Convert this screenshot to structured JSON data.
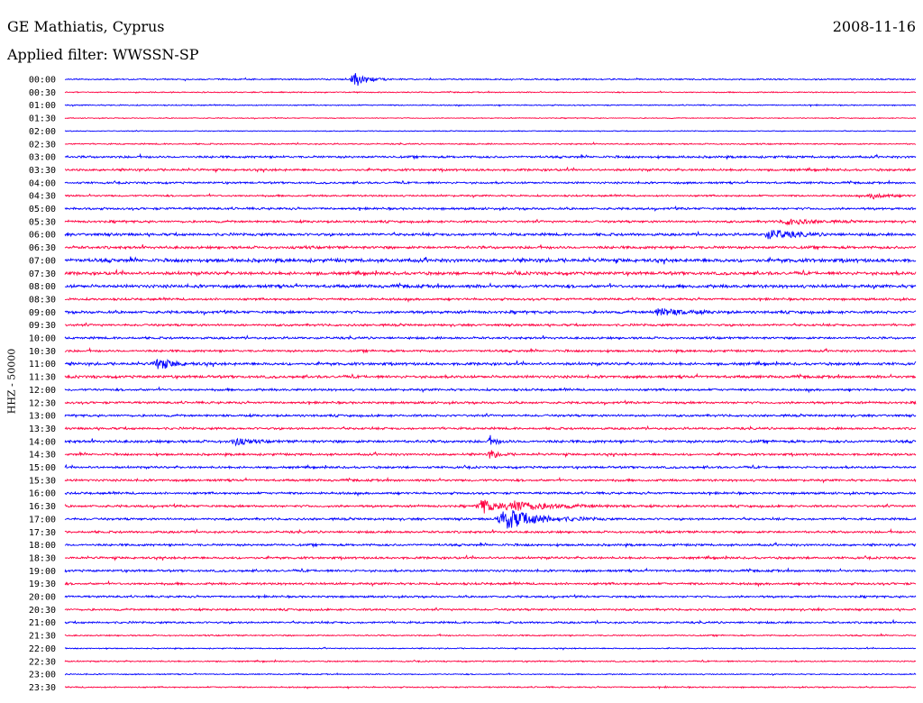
{
  "header": {
    "station": "GE Mathiatis, Cyprus",
    "date": "2008-11-16",
    "filter": "Applied filter: WWSSN-SP"
  },
  "colors": {
    "odd_trace": "#0000ff",
    "even_trace": "#ff0040",
    "text": "#000000"
  },
  "chart_data": {
    "type": "helicorder",
    "title": "GE Mathiatis, Cyprus",
    "subtitle": "Applied filter: WWSSN-SP",
    "date": "2008-11-16",
    "ylabel": "HHZ - 50000",
    "grid": false,
    "row_labels": [
      "00:00",
      "00:30",
      "01:00",
      "01:30",
      "02:00",
      "02:30",
      "03:00",
      "03:30",
      "04:00",
      "04:30",
      "05:00",
      "05:30",
      "06:00",
      "06:30",
      "07:00",
      "07:30",
      "08:00",
      "08:30",
      "09:00",
      "09:30",
      "10:00",
      "10:30",
      "11:00",
      "11:30",
      "12:00",
      "12:30",
      "13:00",
      "13:30",
      "14:00",
      "14:30",
      "15:00",
      "15:30",
      "16:00",
      "16:30",
      "17:00",
      "17:30",
      "18:00",
      "18:30",
      "19:00",
      "19:30",
      "20:00",
      "20:30",
      "21:00",
      "21:30",
      "22:00",
      "22:30",
      "23:00",
      "23:30"
    ],
    "row_noise_levels": [
      0.6,
      0.5,
      0.5,
      0.4,
      0.4,
      0.6,
      1.0,
      1.0,
      0.9,
      0.8,
      1.0,
      1.0,
      1.2,
      1.2,
      1.6,
      1.4,
      1.4,
      1.0,
      1.2,
      1.0,
      1.0,
      1.0,
      1.2,
      1.2,
      1.0,
      1.0,
      1.0,
      1.0,
      1.2,
      1.0,
      1.0,
      1.0,
      1.0,
      1.0,
      1.0,
      1.0,
      1.0,
      1.0,
      1.0,
      1.0,
      0.9,
      0.9,
      0.9,
      0.6,
      0.5,
      0.6,
      0.5,
      0.6
    ],
    "events": [
      {
        "row": 0,
        "x": 0.34,
        "amp": 9,
        "width": 0.015
      },
      {
        "row": 9,
        "x": 0.95,
        "amp": 3,
        "width": 0.02
      },
      {
        "row": 11,
        "x": 0.85,
        "amp": 3,
        "width": 0.03
      },
      {
        "row": 12,
        "x": 0.83,
        "amp": 5,
        "width": 0.03
      },
      {
        "row": 18,
        "x": 0.7,
        "amp": 4,
        "width": 0.03
      },
      {
        "row": 22,
        "x": 0.11,
        "amp": 6,
        "width": 0.02
      },
      {
        "row": 28,
        "x": 0.2,
        "amp": 4,
        "width": 0.015
      },
      {
        "row": 28,
        "x": 0.5,
        "amp": 4,
        "width": 0.01
      },
      {
        "row": 29,
        "x": 0.5,
        "amp": 5,
        "width": 0.01
      },
      {
        "row": 33,
        "x": 0.49,
        "amp": 8,
        "width": 0.02
      },
      {
        "row": 33,
        "x": 0.53,
        "amp": 5,
        "width": 0.05
      },
      {
        "row": 34,
        "x": 0.52,
        "amp": 11,
        "width": 0.04
      }
    ]
  }
}
